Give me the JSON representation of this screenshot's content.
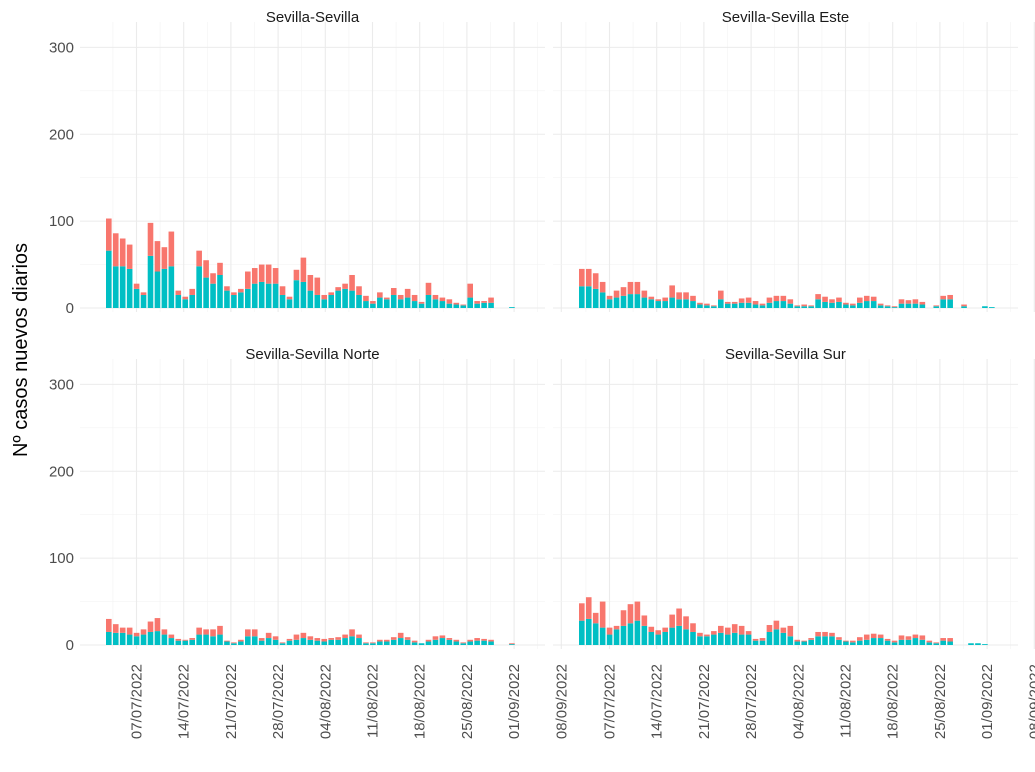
{
  "chart_data": {
    "type": "bar",
    "stacked": true,
    "ylabel": "Nº casos nuevos diarios",
    "xlabel": "",
    "ylim": [
      0,
      320
    ],
    "yticks": [
      0,
      100,
      200,
      300
    ],
    "date_ticks": [
      "07/07/2022",
      "14/07/2022",
      "21/07/2022",
      "28/07/2022",
      "04/08/2022",
      "11/08/2022",
      "18/08/2022",
      "25/08/2022",
      "01/09/2022",
      "08/09/2022"
    ],
    "colors": {
      "top": "#F8766D",
      "bottom": "#00BFC4"
    },
    "grid": true,
    "legend": "none",
    "panels": [
      {
        "title": "Sevilla-Sevilla",
        "bottom": [
          66,
          48,
          48,
          45,
          22,
          15,
          60,
          42,
          45,
          48,
          15,
          10,
          15,
          48,
          35,
          28,
          38,
          20,
          15,
          18,
          22,
          28,
          30,
          28,
          28,
          15,
          10,
          32,
          30,
          20,
          15,
          10,
          15,
          20,
          22,
          20,
          15,
          8,
          5,
          12,
          10,
          15,
          10,
          12,
          8,
          5,
          15,
          10,
          8,
          5,
          4,
          3,
          12,
          5,
          6,
          6,
          0,
          0,
          1
        ],
        "top": [
          37,
          38,
          32,
          28,
          6,
          3,
          38,
          35,
          25,
          40,
          5,
          3,
          7,
          18,
          20,
          12,
          14,
          5,
          3,
          4,
          20,
          18,
          20,
          22,
          18,
          10,
          3,
          12,
          28,
          18,
          20,
          5,
          3,
          4,
          6,
          18,
          10,
          6,
          3,
          6,
          2,
          8,
          5,
          10,
          7,
          2,
          14,
          5,
          4,
          5,
          2,
          1,
          16,
          3,
          2,
          6,
          0,
          0,
          0
        ]
      },
      {
        "title": "Sevilla-Sevilla Este",
        "bottom": [
          25,
          25,
          22,
          18,
          10,
          12,
          14,
          16,
          16,
          12,
          10,
          8,
          8,
          12,
          10,
          10,
          8,
          4,
          3,
          2,
          10,
          5,
          5,
          6,
          6,
          4,
          3,
          6,
          8,
          8,
          5,
          2,
          2,
          2,
          10,
          7,
          6,
          7,
          4,
          3,
          6,
          8,
          8,
          3,
          2,
          1,
          5,
          5,
          5,
          4,
          0,
          2,
          10,
          10,
          0,
          2,
          0,
          0,
          2,
          1
        ],
        "top": [
          20,
          20,
          18,
          12,
          4,
          8,
          10,
          14,
          14,
          8,
          3,
          2,
          4,
          14,
          8,
          8,
          6,
          2,
          2,
          1,
          10,
          2,
          2,
          5,
          6,
          4,
          2,
          6,
          6,
          6,
          5,
          1,
          2,
          1,
          6,
          6,
          4,
          5,
          2,
          2,
          6,
          6,
          5,
          2,
          1,
          1,
          5,
          4,
          5,
          3,
          0,
          1,
          4,
          5,
          0,
          2,
          0,
          0,
          0,
          0
        ]
      },
      {
        "title": "Sevilla-Sevilla Norte",
        "bottom": [
          15,
          14,
          14,
          12,
          10,
          12,
          15,
          16,
          12,
          8,
          5,
          5,
          6,
          12,
          12,
          10,
          12,
          4,
          2,
          4,
          10,
          10,
          5,
          8,
          6,
          2,
          5,
          6,
          8,
          6,
          5,
          4,
          6,
          6,
          8,
          10,
          8,
          2,
          2,
          4,
          4,
          6,
          8,
          6,
          3,
          2,
          4,
          6,
          8,
          6,
          4,
          2,
          4,
          5,
          5,
          4,
          0,
          0,
          1
        ],
        "top": [
          15,
          10,
          6,
          8,
          4,
          6,
          12,
          15,
          6,
          4,
          2,
          1,
          2,
          8,
          6,
          8,
          10,
          1,
          1,
          2,
          8,
          8,
          3,
          6,
          4,
          1,
          2,
          6,
          6,
          4,
          3,
          3,
          2,
          3,
          4,
          8,
          4,
          1,
          1,
          2,
          2,
          3,
          6,
          3,
          2,
          0,
          2,
          4,
          3,
          2,
          2,
          1,
          2,
          3,
          2,
          2,
          0,
          0,
          1
        ]
      },
      {
        "title": "Sevilla-Sevilla Sur",
        "bottom": [
          28,
          30,
          25,
          20,
          12,
          18,
          22,
          25,
          28,
          22,
          15,
          12,
          15,
          20,
          22,
          18,
          15,
          10,
          10,
          12,
          14,
          12,
          14,
          12,
          12,
          5,
          5,
          15,
          18,
          14,
          10,
          4,
          4,
          6,
          10,
          10,
          10,
          6,
          4,
          3,
          5,
          6,
          8,
          8,
          5,
          3,
          6,
          6,
          8,
          6,
          3,
          2,
          5,
          4,
          0,
          0,
          2,
          2,
          1
        ],
        "top": [
          20,
          25,
          12,
          30,
          8,
          4,
          18,
          22,
          22,
          12,
          6,
          5,
          5,
          15,
          20,
          15,
          10,
          4,
          2,
          4,
          8,
          8,
          10,
          10,
          4,
          2,
          3,
          8,
          10,
          6,
          12,
          2,
          1,
          2,
          5,
          5,
          4,
          3,
          1,
          2,
          4,
          6,
          5,
          4,
          2,
          2,
          5,
          4,
          4,
          5,
          2,
          1,
          3,
          4,
          0,
          0,
          0,
          0,
          0
        ]
      }
    ]
  }
}
